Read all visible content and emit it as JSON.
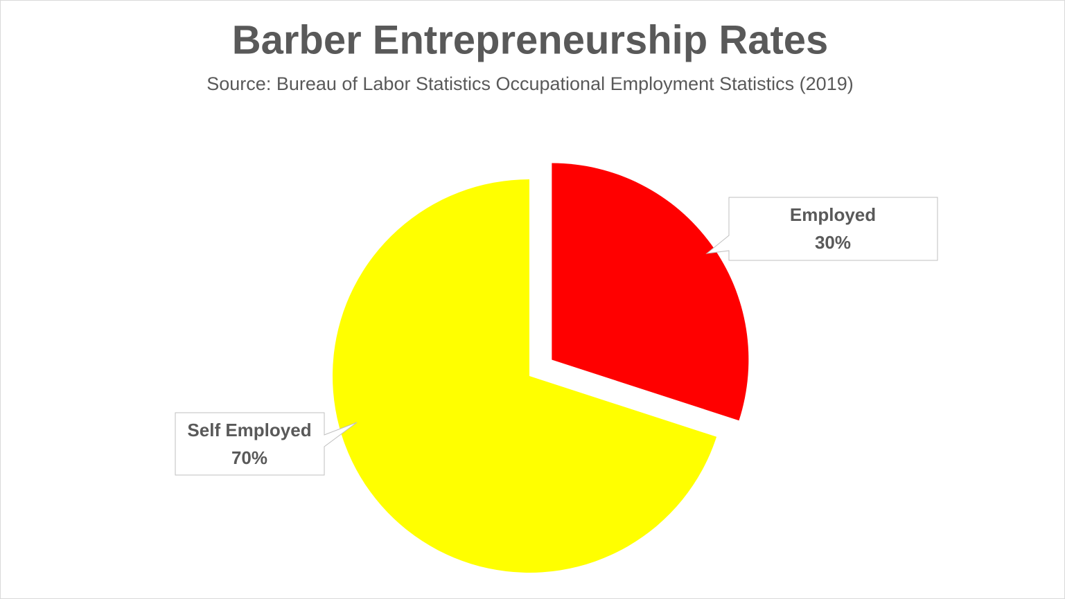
{
  "chart_data": {
    "type": "pie",
    "title": "Barber Entrepreneurship Rates",
    "subtitle": "Source: Bureau of Labor Statistics Occupational Employment Statistics (2019)",
    "categories": [
      "Employed",
      "Self Employed"
    ],
    "values": [
      30,
      70
    ],
    "value_labels": [
      "30%",
      "70%"
    ],
    "colors": [
      "#ff0000",
      "#ffff00"
    ],
    "exploded": [
      "Employed"
    ]
  }
}
